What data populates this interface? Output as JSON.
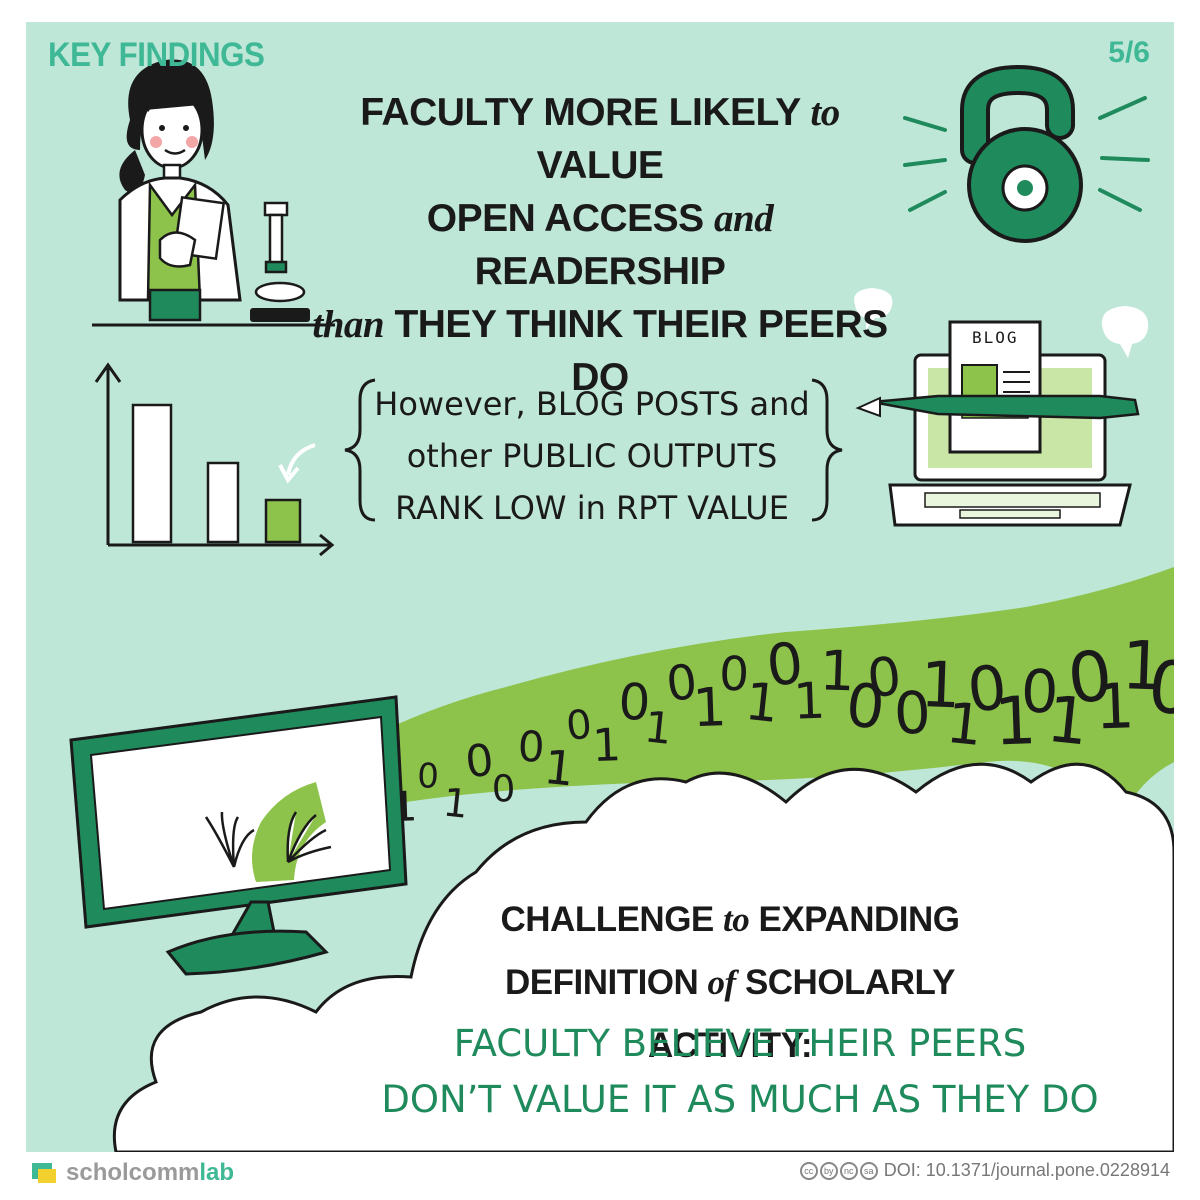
{
  "header": {
    "tag": "KEY FINDINGS",
    "page_indicator": "5/6"
  },
  "headline": {
    "line1a": "FACULTY MORE LIKELY",
    "line1_connector": "to",
    "line1b": "VALUE",
    "line2a": "OPEN ACCESS",
    "line2_connector": "and",
    "line2b": "READERSHIP",
    "line3_connector": "than",
    "line3b": "THEY THINK THEIR PEERS DO"
  },
  "blog_note": {
    "line1": "However, BLOG POSTS and",
    "line2": "other PUBLIC OUTPUTS",
    "line3": "RANK LOW in RPT VALUE",
    "blog_sign": "BLOG"
  },
  "challenge": {
    "line1a": "CHALLENGE",
    "line1_connector": "to",
    "line1b": "EXPANDING",
    "line2a": "DEFINITION",
    "line2_connector": "of",
    "line2b": "SCHOLARLY ACTIVITY:"
  },
  "conclusion": {
    "line1": "FACULTY BELIEVE THEIR PEERS",
    "line2": "DON’T VALUE IT AS MUCH AS THEY DO"
  },
  "binary_stream": {
    "digits": [
      "0",
      "1",
      "0",
      "1",
      "0",
      "1",
      "0",
      "1",
      "0",
      "0",
      "0",
      "1",
      "0",
      "1",
      "0",
      "1",
      "0",
      "1",
      "0",
      "1",
      "0",
      "1",
      "1",
      "0",
      "0",
      "0",
      "1",
      "1",
      "0",
      "1",
      "0",
      "1",
      "0",
      "1",
      "1",
      "0"
    ]
  },
  "footer": {
    "brand_part1": "scholcomm",
    "brand_part2": "lab",
    "doi": "DOI: 10.1371/journal.pone.0228914",
    "license_icons": [
      "cc",
      "by",
      "nc",
      "sa"
    ]
  },
  "colors": {
    "background": "#bfe7d8",
    "accent_dark": "#1f8a5c",
    "accent_light": "#8dc34a",
    "tag": "#3fb895",
    "ink": "#1a1a1a"
  },
  "icons": {
    "open_access": "open-access-lock-icon",
    "scientist": "scientist-illustration",
    "microscope": "microscope-icon",
    "bar_chart": "bar-chart-icon",
    "laptop_blog": "laptop-blog-icon",
    "monitor": "monitor-icon"
  }
}
